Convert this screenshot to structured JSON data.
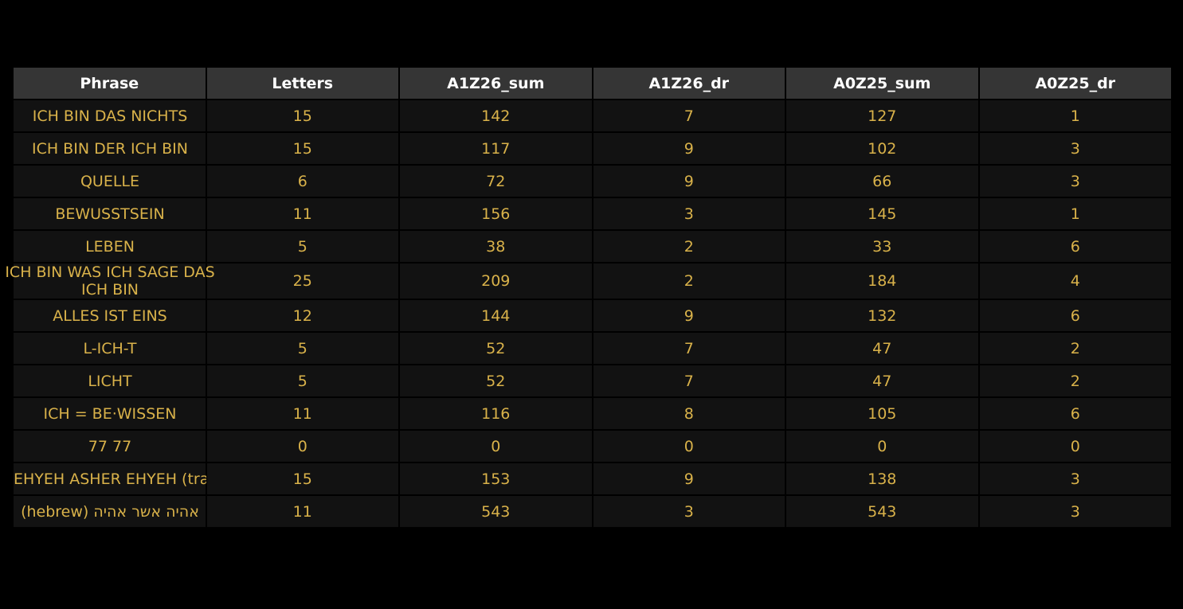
{
  "chart_data": {
    "type": "table",
    "columns": [
      "Phrase",
      "Letters",
      "A1Z26_sum",
      "A1Z26_dr",
      "A0Z25_sum",
      "A0Z25_dr"
    ],
    "rows": [
      [
        "ICH BIN DAS NICHTS",
        "15",
        "142",
        "7",
        "127",
        "1"
      ],
      [
        "ICH BIN DER ICH BIN",
        "15",
        "117",
        "9",
        "102",
        "3"
      ],
      [
        "QUELLE",
        "6",
        "72",
        "9",
        "66",
        "3"
      ],
      [
        "BEWUSSTSEIN",
        "11",
        "156",
        "3",
        "145",
        "1"
      ],
      [
        "LEBEN",
        "5",
        "38",
        "2",
        "33",
        "6"
      ],
      [
        "ICH BIN WAS ICH SAGE DAS ICH BIN",
        "25",
        "209",
        "2",
        "184",
        "4"
      ],
      [
        "ALLES IST EINS",
        "12",
        "144",
        "9",
        "132",
        "6"
      ],
      [
        "L-ICH-T",
        "5",
        "52",
        "7",
        "47",
        "2"
      ],
      [
        "LICHT",
        "5",
        "52",
        "7",
        "47",
        "2"
      ],
      [
        "ICH = BE·WISSEN",
        "11",
        "116",
        "8",
        "105",
        "6"
      ],
      [
        "77 77",
        "0",
        "0",
        "0",
        "0",
        "0"
      ],
      [
        "EHYEH ASHER EHYEH (translit)",
        "15",
        "153",
        "9",
        "138",
        "3"
      ],
      [
        "אהיה אשר אהיה (hebrew)",
        "11",
        "543",
        "3",
        "543",
        "3"
      ]
    ]
  },
  "colors": {
    "background": "#000000",
    "header_bg": "#353535",
    "header_text": "#ffffff",
    "cell_bg": "#121212",
    "cell_text": "#d9b24a",
    "grid_lines": "#000000"
  }
}
